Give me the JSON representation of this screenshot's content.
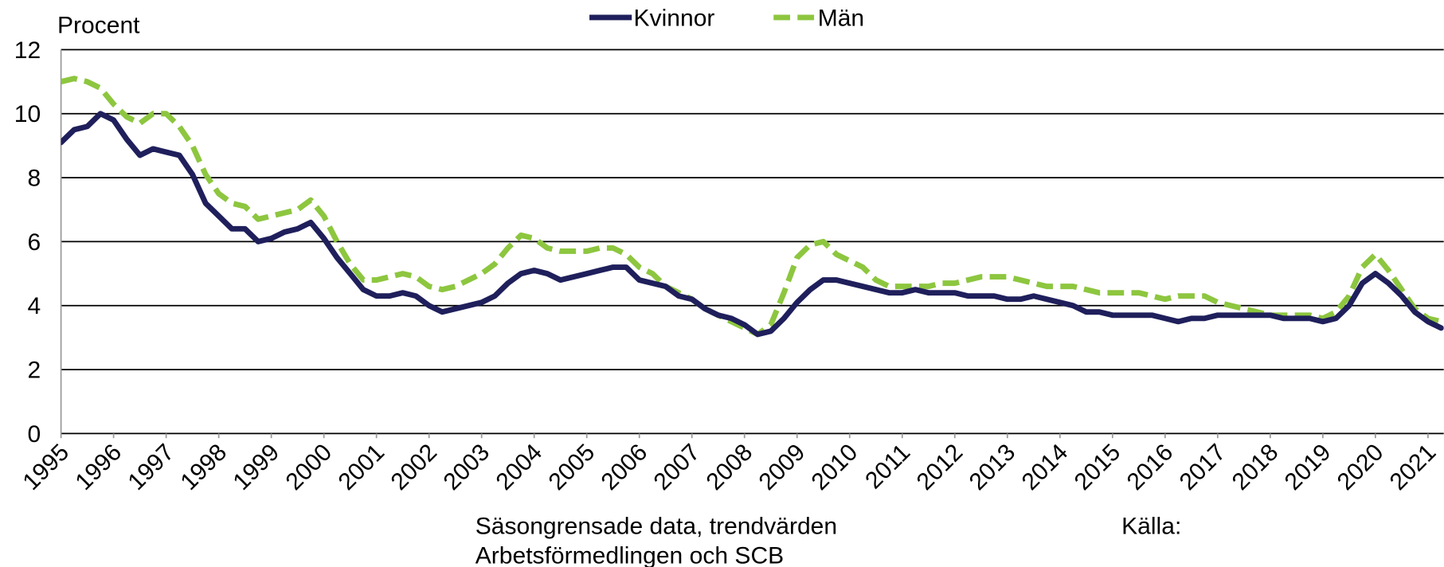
{
  "chart_data": {
    "type": "line",
    "y_label": "Procent",
    "notes": [
      "Säsongrensade data, trendvärden",
      "Arbetsförmedlingen och SCB"
    ],
    "source_label": "Källa:",
    "legend": "top-center",
    "grid": true,
    "xlim": [
      1995,
      2021.3
    ],
    "ylim": [
      0,
      12
    ],
    "yticks": [
      0,
      2,
      4,
      6,
      8,
      10,
      12
    ],
    "xticks": [
      1995,
      1996,
      1997,
      1998,
      1999,
      2000,
      2001,
      2002,
      2003,
      2004,
      2005,
      2006,
      2007,
      2008,
      2009,
      2010,
      2011,
      2012,
      2013,
      2014,
      2015,
      2016,
      2017,
      2018,
      2019,
      2020,
      2021
    ],
    "x": [
      1995,
      1995.25,
      1995.5,
      1995.75,
      1996,
      1996.25,
      1996.5,
      1996.75,
      1997,
      1997.25,
      1997.5,
      1997.75,
      1998,
      1998.25,
      1998.5,
      1998.75,
      1999,
      1999.25,
      1999.5,
      1999.75,
      2000,
      2000.25,
      2000.5,
      2000.75,
      2001,
      2001.25,
      2001.5,
      2001.75,
      2002,
      2002.25,
      2002.5,
      2002.75,
      2003,
      2003.25,
      2003.5,
      2003.75,
      2004,
      2004.25,
      2004.5,
      2004.75,
      2005,
      2005.25,
      2005.5,
      2005.75,
      2006,
      2006.25,
      2006.5,
      2006.75,
      2007,
      2007.25,
      2007.5,
      2007.75,
      2008,
      2008.25,
      2008.5,
      2008.75,
      2009,
      2009.25,
      2009.5,
      2009.75,
      2010,
      2010.25,
      2010.5,
      2010.75,
      2011,
      2011.25,
      2011.5,
      2011.75,
      2012,
      2012.25,
      2012.5,
      2012.75,
      2013,
      2013.25,
      2013.5,
      2013.75,
      2014,
      2014.25,
      2014.5,
      2014.75,
      2015,
      2015.25,
      2015.5,
      2015.75,
      2016,
      2016.25,
      2016.5,
      2016.75,
      2017,
      2017.25,
      2017.5,
      2017.75,
      2018,
      2018.25,
      2018.5,
      2018.75,
      2019,
      2019.25,
      2019.5,
      2019.75,
      2020,
      2020.25,
      2020.5,
      2020.75,
      2021,
      2021.25
    ],
    "series": [
      {
        "name": "Kvinnor",
        "color": "#1f1f5c",
        "linestyle": "solid",
        "values": [
          9.1,
          9.5,
          9.6,
          10.0,
          9.8,
          9.2,
          8.7,
          8.9,
          8.8,
          8.7,
          8.1,
          7.2,
          6.8,
          6.4,
          6.4,
          6.0,
          6.1,
          6.3,
          6.4,
          6.6,
          6.1,
          5.5,
          5.0,
          4.5,
          4.3,
          4.3,
          4.4,
          4.3,
          4.0,
          3.8,
          3.9,
          4.0,
          4.1,
          4.3,
          4.7,
          5.0,
          5.1,
          5.0,
          4.8,
          4.9,
          5.0,
          5.1,
          5.2,
          5.2,
          4.8,
          4.7,
          4.6,
          4.3,
          4.2,
          3.9,
          3.7,
          3.6,
          3.4,
          3.1,
          3.2,
          3.6,
          4.1,
          4.5,
          4.8,
          4.8,
          4.7,
          4.6,
          4.5,
          4.4,
          4.4,
          4.5,
          4.4,
          4.4,
          4.4,
          4.3,
          4.3,
          4.3,
          4.2,
          4.2,
          4.3,
          4.2,
          4.1,
          4.0,
          3.8,
          3.8,
          3.7,
          3.7,
          3.7,
          3.7,
          3.6,
          3.5,
          3.6,
          3.6,
          3.7,
          3.7,
          3.7,
          3.7,
          3.7,
          3.6,
          3.6,
          3.6,
          3.5,
          3.6,
          4.0,
          4.7,
          5.0,
          4.7,
          4.3,
          3.8,
          3.5,
          3.3
        ]
      },
      {
        "name": "Män",
        "color": "#8dc63f",
        "linestyle": "dashed",
        "values": [
          11.0,
          11.1,
          11.0,
          10.8,
          10.3,
          9.9,
          9.7,
          10.0,
          10.0,
          9.6,
          9.0,
          8.1,
          7.5,
          7.2,
          7.1,
          6.7,
          6.8,
          6.9,
          7.0,
          7.3,
          6.8,
          6.0,
          5.3,
          4.8,
          4.8,
          4.9,
          5.0,
          4.9,
          4.6,
          4.5,
          4.6,
          4.8,
          5.0,
          5.3,
          5.8,
          6.2,
          6.1,
          5.8,
          5.7,
          5.7,
          5.7,
          5.8,
          5.8,
          5.6,
          5.2,
          5.0,
          4.6,
          4.4,
          4.2,
          3.9,
          3.7,
          3.5,
          3.3,
          3.1,
          3.4,
          4.4,
          5.5,
          5.9,
          6.0,
          5.6,
          5.4,
          5.2,
          4.8,
          4.6,
          4.6,
          4.6,
          4.6,
          4.7,
          4.7,
          4.8,
          4.9,
          4.9,
          4.9,
          4.8,
          4.7,
          4.6,
          4.6,
          4.6,
          4.5,
          4.4,
          4.4,
          4.4,
          4.4,
          4.3,
          4.2,
          4.3,
          4.3,
          4.3,
          4.1,
          4.0,
          3.9,
          3.8,
          3.7,
          3.7,
          3.7,
          3.7,
          3.6,
          3.8,
          4.3,
          5.2,
          5.6,
          5.1,
          4.5,
          3.9,
          3.6,
          3.5
        ]
      }
    ]
  }
}
